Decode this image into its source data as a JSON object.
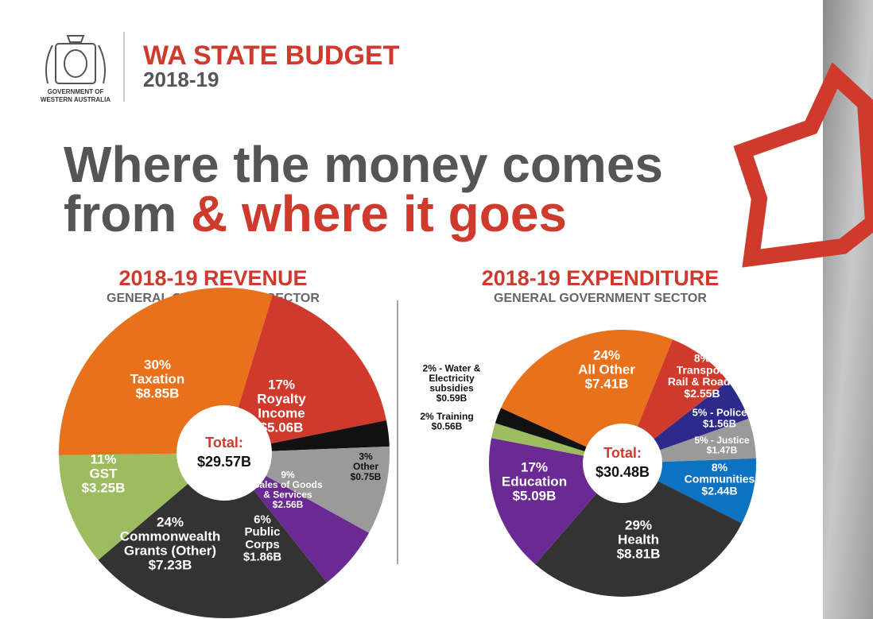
{
  "header": {
    "logo_line1": "GOVERNMENT OF",
    "logo_line2": "WESTERN AUSTRALIA",
    "title": "WA STATE BUDGET",
    "year": "2018-19",
    "headline_line1": "Where the money comes",
    "headline_line2a": "from",
    "headline_line2b": "& where it goes"
  },
  "chart_data": [
    {
      "type": "pie",
      "title": "2018-19 REVENUE",
      "subtitle": "GENERAL GOVERNMENT SECTOR",
      "labels": [
        [
          "17%",
          "Royalty",
          "Income"
        ],
        [
          "3%",
          "Other"
        ],
        [
          "9%",
          "Sales of Goods",
          "& Services"
        ],
        [
          "6%",
          "Public",
          "Corps"
        ],
        [
          "24%",
          "Commonwealth",
          "Grants (Other)"
        ],
        [
          "11%",
          "GST"
        ],
        [
          "30%",
          "Taxation"
        ]
      ],
      "values": [
        5.06,
        0.75,
        2.56,
        1.86,
        7.23,
        3.25,
        8.85
      ],
      "value_labels": [
        "$5.06B",
        "$0.75B",
        "$2.56B",
        "$1.86B",
        "$7.23B",
        "$3.25B",
        "$8.85B"
      ],
      "colors": [
        "#cf3a2c",
        "#111111",
        "#9a9a9a",
        "#6b2a93",
        "#333333",
        "#9dbc5f",
        "#e8711c"
      ],
      "total_label": "Total:",
      "total": "$29.57B"
    },
    {
      "type": "pie",
      "title": "2018-19 EXPENDITURE",
      "subtitle": "GENERAL GOVERNMENT SECTOR",
      "labels": [
        [
          "8%",
          "Transport",
          "Rail & Roads"
        ],
        [
          "5% - Police"
        ],
        [
          "5% - Justice"
        ],
        [
          "8%",
          "Communities"
        ],
        [
          "29%",
          "Health"
        ],
        [
          "17%",
          "Education"
        ],
        [
          "2% Training"
        ],
        [
          "2% - Water &",
          "Electricity",
          "subsidies"
        ],
        [
          "24%",
          "All Other"
        ]
      ],
      "values": [
        2.55,
        1.56,
        1.47,
        2.44,
        8.81,
        5.09,
        0.56,
        0.59,
        7.41
      ],
      "value_labels": [
        "$2.55B",
        "$1.56B",
        "$1.47B",
        "$2.44B",
        "$8.81B",
        "$5.09B",
        "$0.56B",
        "$0.59B",
        "$7.41B"
      ],
      "colors": [
        "#cf3a2c",
        "#2d2a8c",
        "#9a9a9a",
        "#0b73c2",
        "#333333",
        "#6b2a93",
        "#9dbc5f",
        "#111111",
        "#e8711c"
      ],
      "total_label": "Total:",
      "total": "$30.48B"
    }
  ]
}
